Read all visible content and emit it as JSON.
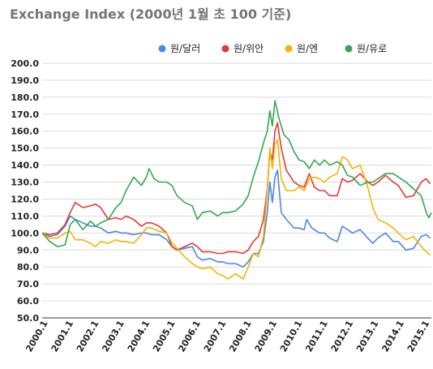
{
  "chart_data": {
    "type": "line",
    "title": "Exchange Index (2000년 1월 초 100 기준)",
    "xlabel": "",
    "ylabel": "",
    "ylim": [
      50,
      200
    ],
    "y_ticks": [
      "200.0",
      "190.0",
      "180.0",
      "170.0",
      "160.0",
      "150.0",
      "140.0",
      "130.0",
      "120.0",
      "110.0",
      "100.0",
      "90.0",
      "80.0",
      "70.0",
      "60.0",
      "50.0"
    ],
    "x_ticks": [
      "2000.1",
      "2001.1",
      "2002.1",
      "2003.1",
      "2004.1",
      "2005.1",
      "2006.1",
      "2007.1",
      "2008.1",
      "2009.1",
      "2010.1",
      "2011.1",
      "2012.1",
      "2013.1",
      "2014.1",
      "2015.1"
    ],
    "grid": true,
    "legend_position": "top-right",
    "series": [
      {
        "name": "원/달러",
        "color": "#4a86e8",
        "points": [
          [
            2000.0,
            100
          ],
          [
            2000.3,
            98
          ],
          [
            2000.6,
            99
          ],
          [
            2000.9,
            104
          ],
          [
            2001.1,
            110
          ],
          [
            2001.3,
            108
          ],
          [
            2001.6,
            106
          ],
          [
            2001.9,
            104
          ],
          [
            2002.1,
            104
          ],
          [
            2002.3,
            103
          ],
          [
            2002.6,
            100
          ],
          [
            2002.9,
            101
          ],
          [
            2003.1,
            100
          ],
          [
            2003.3,
            100
          ],
          [
            2003.6,
            99
          ],
          [
            2003.9,
            100
          ],
          [
            2004.1,
            100
          ],
          [
            2004.3,
            99
          ],
          [
            2004.6,
            99
          ],
          [
            2004.9,
            96
          ],
          [
            2005.1,
            92
          ],
          [
            2005.3,
            90
          ],
          [
            2005.6,
            91
          ],
          [
            2005.9,
            92
          ],
          [
            2006.1,
            86
          ],
          [
            2006.3,
            84
          ],
          [
            2006.6,
            85
          ],
          [
            2006.9,
            83
          ],
          [
            2007.1,
            83
          ],
          [
            2007.3,
            82
          ],
          [
            2007.6,
            82
          ],
          [
            2007.9,
            80
          ],
          [
            2008.1,
            83
          ],
          [
            2008.3,
            88
          ],
          [
            2008.5,
            88
          ],
          [
            2008.7,
            95
          ],
          [
            2008.85,
            112
          ],
          [
            2008.95,
            130
          ],
          [
            2009.05,
            118
          ],
          [
            2009.15,
            133
          ],
          [
            2009.25,
            137
          ],
          [
            2009.4,
            112
          ],
          [
            2009.6,
            108
          ],
          [
            2009.9,
            103
          ],
          [
            2010.1,
            103
          ],
          [
            2010.3,
            102
          ],
          [
            2010.4,
            108
          ],
          [
            2010.6,
            103
          ],
          [
            2010.9,
            100
          ],
          [
            2011.1,
            100
          ],
          [
            2011.3,
            97
          ],
          [
            2011.6,
            95
          ],
          [
            2011.8,
            104
          ],
          [
            2012.0,
            102
          ],
          [
            2012.2,
            100
          ],
          [
            2012.5,
            102
          ],
          [
            2012.8,
            97
          ],
          [
            2013.0,
            94
          ],
          [
            2013.2,
            97
          ],
          [
            2013.5,
            100
          ],
          [
            2013.8,
            95
          ],
          [
            2014.0,
            95
          ],
          [
            2014.3,
            90
          ],
          [
            2014.6,
            91
          ],
          [
            2014.9,
            98
          ],
          [
            2015.1,
            99
          ],
          [
            2015.25,
            97
          ]
        ]
      },
      {
        "name": "원/위안",
        "color": "#e53935",
        "points": [
          [
            2000.0,
            100
          ],
          [
            2000.3,
            99
          ],
          [
            2000.6,
            100
          ],
          [
            2000.9,
            105
          ],
          [
            2001.1,
            112
          ],
          [
            2001.3,
            118
          ],
          [
            2001.6,
            115
          ],
          [
            2001.9,
            116
          ],
          [
            2002.1,
            117
          ],
          [
            2002.3,
            115
          ],
          [
            2002.6,
            108
          ],
          [
            2002.9,
            109
          ],
          [
            2003.1,
            108
          ],
          [
            2003.3,
            110
          ],
          [
            2003.6,
            108
          ],
          [
            2003.9,
            104
          ],
          [
            2004.1,
            106
          ],
          [
            2004.3,
            106
          ],
          [
            2004.6,
            104
          ],
          [
            2004.9,
            100
          ],
          [
            2005.1,
            92
          ],
          [
            2005.3,
            90
          ],
          [
            2005.6,
            92
          ],
          [
            2005.9,
            94
          ],
          [
            2006.1,
            92
          ],
          [
            2006.3,
            89
          ],
          [
            2006.6,
            89
          ],
          [
            2006.9,
            88
          ],
          [
            2007.1,
            88
          ],
          [
            2007.3,
            89
          ],
          [
            2007.6,
            89
          ],
          [
            2007.9,
            88
          ],
          [
            2008.1,
            90
          ],
          [
            2008.3,
            95
          ],
          [
            2008.5,
            98
          ],
          [
            2008.7,
            108
          ],
          [
            2008.85,
            126
          ],
          [
            2008.95,
            148
          ],
          [
            2009.05,
            143
          ],
          [
            2009.15,
            160
          ],
          [
            2009.25,
            165
          ],
          [
            2009.4,
            150
          ],
          [
            2009.6,
            137
          ],
          [
            2009.9,
            130
          ],
          [
            2010.1,
            128
          ],
          [
            2010.3,
            127
          ],
          [
            2010.5,
            135
          ],
          [
            2010.7,
            127
          ],
          [
            2010.9,
            125
          ],
          [
            2011.1,
            125
          ],
          [
            2011.3,
            122
          ],
          [
            2011.6,
            122
          ],
          [
            2011.8,
            132
          ],
          [
            2012.0,
            130
          ],
          [
            2012.2,
            131
          ],
          [
            2012.5,
            135
          ],
          [
            2012.8,
            130
          ],
          [
            2013.0,
            128
          ],
          [
            2013.2,
            130
          ],
          [
            2013.5,
            134
          ],
          [
            2013.8,
            130
          ],
          [
            2014.0,
            128
          ],
          [
            2014.3,
            121
          ],
          [
            2014.6,
            122
          ],
          [
            2014.9,
            130
          ],
          [
            2015.1,
            132
          ],
          [
            2015.25,
            129
          ]
        ]
      },
      {
        "name": "원/엔",
        "color": "#f4b400",
        "points": [
          [
            2000.0,
            100
          ],
          [
            2000.3,
            97
          ],
          [
            2000.6,
            97
          ],
          [
            2000.9,
            100
          ],
          [
            2001.1,
            101
          ],
          [
            2001.3,
            96
          ],
          [
            2001.6,
            96
          ],
          [
            2001.9,
            94
          ],
          [
            2002.1,
            92
          ],
          [
            2002.3,
            95
          ],
          [
            2002.6,
            94
          ],
          [
            2002.9,
            96
          ],
          [
            2003.1,
            95
          ],
          [
            2003.3,
            95
          ],
          [
            2003.6,
            94
          ],
          [
            2003.9,
            99
          ],
          [
            2004.1,
            103
          ],
          [
            2004.3,
            103
          ],
          [
            2004.6,
            101
          ],
          [
            2004.9,
            100
          ],
          [
            2005.1,
            94
          ],
          [
            2005.3,
            91
          ],
          [
            2005.6,
            86
          ],
          [
            2005.9,
            82
          ],
          [
            2006.1,
            80
          ],
          [
            2006.3,
            79
          ],
          [
            2006.6,
            80
          ],
          [
            2006.9,
            76
          ],
          [
            2007.1,
            75
          ],
          [
            2007.3,
            73
          ],
          [
            2007.6,
            76
          ],
          [
            2007.9,
            73
          ],
          [
            2008.1,
            80
          ],
          [
            2008.3,
            88
          ],
          [
            2008.5,
            86
          ],
          [
            2008.7,
            98
          ],
          [
            2008.85,
            125
          ],
          [
            2008.95,
            150
          ],
          [
            2009.05,
            138
          ],
          [
            2009.15,
            152
          ],
          [
            2009.25,
            155
          ],
          [
            2009.4,
            132
          ],
          [
            2009.6,
            125
          ],
          [
            2009.9,
            125
          ],
          [
            2010.1,
            127
          ],
          [
            2010.3,
            125
          ],
          [
            2010.5,
            132
          ],
          [
            2010.7,
            133
          ],
          [
            2010.9,
            132
          ],
          [
            2011.1,
            130
          ],
          [
            2011.3,
            133
          ],
          [
            2011.6,
            135
          ],
          [
            2011.8,
            145
          ],
          [
            2012.0,
            143
          ],
          [
            2012.2,
            138
          ],
          [
            2012.5,
            140
          ],
          [
            2012.8,
            127
          ],
          [
            2013.0,
            115
          ],
          [
            2013.2,
            108
          ],
          [
            2013.5,
            106
          ],
          [
            2013.8,
            103
          ],
          [
            2014.0,
            100
          ],
          [
            2014.3,
            96
          ],
          [
            2014.6,
            98
          ],
          [
            2014.9,
            92
          ],
          [
            2015.1,
            89
          ],
          [
            2015.25,
            87
          ]
        ]
      },
      {
        "name": "원/유로",
        "color": "#34a853",
        "points": [
          [
            2000.0,
            100
          ],
          [
            2000.3,
            95
          ],
          [
            2000.6,
            92
          ],
          [
            2000.9,
            93
          ],
          [
            2001.1,
            105
          ],
          [
            2001.3,
            108
          ],
          [
            2001.6,
            102
          ],
          [
            2001.9,
            107
          ],
          [
            2002.1,
            104
          ],
          [
            2002.3,
            106
          ],
          [
            2002.6,
            108
          ],
          [
            2002.9,
            115
          ],
          [
            2003.1,
            118
          ],
          [
            2003.3,
            125
          ],
          [
            2003.6,
            133
          ],
          [
            2003.9,
            128
          ],
          [
            2004.1,
            133
          ],
          [
            2004.2,
            138
          ],
          [
            2004.4,
            132
          ],
          [
            2004.6,
            130
          ],
          [
            2004.9,
            130
          ],
          [
            2005.1,
            128
          ],
          [
            2005.3,
            122
          ],
          [
            2005.6,
            118
          ],
          [
            2005.9,
            116
          ],
          [
            2006.1,
            108
          ],
          [
            2006.3,
            112
          ],
          [
            2006.6,
            113
          ],
          [
            2006.9,
            110
          ],
          [
            2007.1,
            112
          ],
          [
            2007.3,
            112
          ],
          [
            2007.6,
            113
          ],
          [
            2007.9,
            117
          ],
          [
            2008.1,
            122
          ],
          [
            2008.3,
            133
          ],
          [
            2008.5,
            142
          ],
          [
            2008.7,
            153
          ],
          [
            2008.85,
            160
          ],
          [
            2008.95,
            172
          ],
          [
            2009.05,
            163
          ],
          [
            2009.15,
            178
          ],
          [
            2009.3,
            168
          ],
          [
            2009.5,
            158
          ],
          [
            2009.7,
            155
          ],
          [
            2009.9,
            148
          ],
          [
            2010.1,
            143
          ],
          [
            2010.3,
            142
          ],
          [
            2010.5,
            138
          ],
          [
            2010.7,
            143
          ],
          [
            2010.9,
            140
          ],
          [
            2011.1,
            143
          ],
          [
            2011.3,
            140
          ],
          [
            2011.6,
            142
          ],
          [
            2011.8,
            140
          ],
          [
            2012.0,
            134
          ],
          [
            2012.2,
            133
          ],
          [
            2012.5,
            128
          ],
          [
            2012.8,
            130
          ],
          [
            2013.0,
            130
          ],
          [
            2013.2,
            132
          ],
          [
            2013.5,
            135
          ],
          [
            2013.8,
            135
          ],
          [
            2014.0,
            133
          ],
          [
            2014.3,
            130
          ],
          [
            2014.6,
            126
          ],
          [
            2014.9,
            122
          ],
          [
            2015.1,
            112
          ],
          [
            2015.2,
            109
          ],
          [
            2015.3,
            112
          ]
        ]
      }
    ]
  }
}
